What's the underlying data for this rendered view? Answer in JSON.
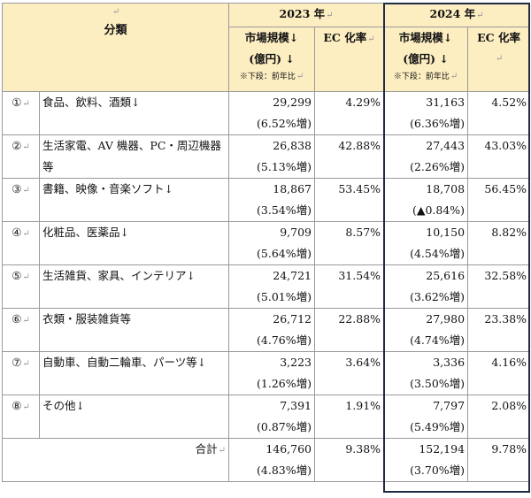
{
  "header": {
    "category_label": "分類",
    "year_2023": "2023 年",
    "year_2024": "2024 年",
    "market_size_line1": "市場規模↓",
    "market_size_line2": "(億円) ↓",
    "market_size_note": "※下段：前年比",
    "ec_rate": "EC 化率",
    "return_mark": "↵"
  },
  "rows": [
    {
      "no": "①",
      "name": "食品、飲料、酒類↓",
      "m2023": "29,299",
      "g2023": "(6.52%増)",
      "ec2023": "4.29%",
      "m2024": "31,163",
      "g2024": "(6.36%増)",
      "ec2024": "4.52%"
    },
    {
      "no": "②",
      "name": "生活家電、AV 機器、PC・周辺機器等",
      "m2023": "26,838",
      "g2023": "(5.13%増)",
      "ec2023": "42.88%",
      "m2024": "27,443",
      "g2024": "(2.26%増)",
      "ec2024": "43.03%"
    },
    {
      "no": "③",
      "name": "書籍、映像・音楽ソフト↓",
      "m2023": "18,867",
      "g2023": "(3.54%増)",
      "ec2023": "53.45%",
      "m2024": "18,708",
      "g2024": "(▲0.84%)",
      "ec2024": "56.45%"
    },
    {
      "no": "④",
      "name": "化粧品、医薬品↓",
      "m2023": "9,709",
      "g2023": "(5.64%増)",
      "ec2023": "8.57%",
      "m2024": "10,150",
      "g2024": "(4.54%増)",
      "ec2024": "8.82%"
    },
    {
      "no": "⑤",
      "name": "生活雑貨、家具、インテリア↓",
      "m2023": "24,721",
      "g2023": "(5.01%増)",
      "ec2023": "31.54%",
      "m2024": "25,616",
      "g2024": "(3.62%増)",
      "ec2024": "32.58%"
    },
    {
      "no": "⑥",
      "name": "衣類・服装雑貨等",
      "m2023": "26,712",
      "g2023": "(4.76%増)",
      "ec2023": "22.88%",
      "m2024": "27,980",
      "g2024": "(4.74%増)",
      "ec2024": "23.38%"
    },
    {
      "no": "⑦",
      "name": "自動車、自動二輪車、パーツ等↓",
      "m2023": "3,223",
      "g2023": "(1.26%増)",
      "ec2023": "3.64%",
      "m2024": "3,336",
      "g2024": "(3.50%増)",
      "ec2024": "4.16%"
    },
    {
      "no": "⑧",
      "name": "その他↓",
      "m2023": "7,391",
      "g2023": "(0.87%増)",
      "ec2023": "1.91%",
      "m2024": "7,797",
      "g2024": "(5.49%増)",
      "ec2024": "2.08%"
    }
  ],
  "total": {
    "label": "合計",
    "m2023": "146,760",
    "g2023": "(4.83%増)",
    "ec2023": "9.38%",
    "m2024": "152,194",
    "g2024": "(3.70%増)",
    "ec2024": "9.78%"
  }
}
